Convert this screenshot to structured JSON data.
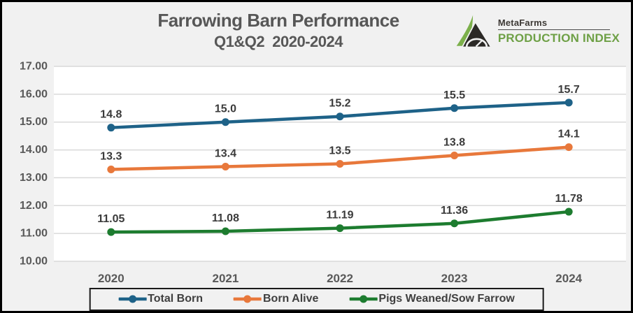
{
  "header": {
    "title": "Farrowing Barn Performance",
    "subtitle": "Q1&Q2  2020-2024"
  },
  "logo": {
    "brand": "MetaFarms",
    "product": "PRODUCTION INDEX",
    "icon": "metafarms-mountain-gauge-icon",
    "icon_green": "#7CB04B",
    "icon_black": "#2B2926",
    "brand_color": "#3D3935",
    "product_color": "#6EA046"
  },
  "chart_data": {
    "type": "line",
    "title": "Farrowing Barn Performance",
    "subtitle": "Q1&Q2 2020-2024",
    "categories": [
      "2020",
      "2021",
      "2022",
      "2023",
      "2024"
    ],
    "series": [
      {
        "name": "Total Born",
        "color": "#1E6288",
        "values": [
          14.8,
          15.0,
          15.2,
          15.5,
          15.7
        ],
        "labels": [
          "14.8",
          "15.0",
          "15.2",
          "15.5",
          "15.7"
        ]
      },
      {
        "name": "Born Alive",
        "color": "#E8783B",
        "values": [
          13.3,
          13.4,
          13.5,
          13.8,
          14.1
        ],
        "labels": [
          "13.3",
          "13.4",
          "13.5",
          "13.8",
          "14.1"
        ]
      },
      {
        "name": "Pigs Weaned/Sow Farrow",
        "color": "#1D7C2F",
        "values": [
          11.05,
          11.08,
          11.19,
          11.36,
          11.78
        ],
        "labels": [
          "11.05",
          "11.08",
          "11.19",
          "11.36",
          "11.78"
        ]
      }
    ],
    "ylim": [
      10,
      17
    ],
    "ytick_step": 1,
    "yticks": [
      "17.00",
      "16.00",
      "15.00",
      "14.00",
      "13.00",
      "12.00",
      "11.00",
      "10.00"
    ],
    "grid": "horizontal",
    "legend_position": "bottom",
    "plot_bg": "#FFFFFF",
    "page_bg": "#F1F1F1",
    "gridline_color": "#D9D9D9",
    "axis_label_color": "#595959",
    "data_label_color": "#3B3B3B"
  }
}
